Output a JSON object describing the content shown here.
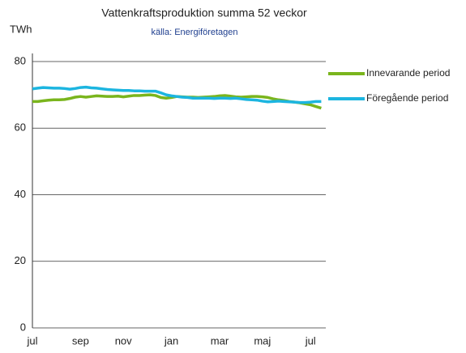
{
  "chart_data": {
    "type": "line",
    "title": "Vattenkraftsproduktion summa 52 veckor",
    "subtitle": "källa: Energiföretagen",
    "y_label": "TWh",
    "categories": [
      "jul",
      null,
      null,
      null,
      null,
      null,
      null,
      null,
      null,
      "sep",
      null,
      null,
      null,
      null,
      null,
      null,
      null,
      "nov",
      null,
      null,
      null,
      null,
      null,
      null,
      null,
      null,
      "jan",
      null,
      null,
      null,
      null,
      null,
      null,
      null,
      null,
      "mar",
      null,
      null,
      null,
      null,
      null,
      null,
      null,
      "maj",
      null,
      null,
      null,
      null,
      null,
      null,
      null,
      null,
      "jul",
      null,
      null
    ],
    "series": [
      {
        "name": "Innevarande period",
        "color": "#7ab51d",
        "values": [
          68,
          68,
          68.2,
          68.4,
          68.5,
          68.5,
          68.6,
          68.9,
          69.3,
          69.5,
          69.3,
          69.5,
          69.7,
          69.6,
          69.5,
          69.5,
          69.6,
          69.4,
          69.6,
          69.8,
          69.8,
          69.9,
          70,
          69.8,
          69.2,
          69,
          69.2,
          69.5,
          69.4,
          69.3,
          69.3,
          69.2,
          69.3,
          69.4,
          69.5,
          69.7,
          69.8,
          69.6,
          69.4,
          69.3,
          69.4,
          69.5,
          69.5,
          69.4,
          69.2,
          68.8,
          68.5,
          68.3,
          68,
          67.8,
          67.6,
          67.3,
          67,
          66.5,
          66
        ]
      },
      {
        "name": "Föregående period",
        "color": "#1cb5e0",
        "values": [
          71.8,
          72,
          72.2,
          72.1,
          72,
          72,
          71.9,
          71.7,
          71.9,
          72.2,
          72.3,
          72.1,
          72,
          71.8,
          71.6,
          71.5,
          71.4,
          71.3,
          71.3,
          71.2,
          71.2,
          71.1,
          71.1,
          71.1,
          70.6,
          70,
          69.7,
          69.5,
          69.3,
          69.2,
          69,
          69,
          69,
          69,
          68.9,
          69,
          69,
          68.9,
          69,
          68.8,
          68.6,
          68.5,
          68.4,
          68.1,
          67.9,
          68,
          68.1,
          68,
          67.9,
          67.8,
          67.7,
          67.7,
          67.8,
          68,
          68
        ]
      }
    ],
    "ylim": [
      0,
      80
    ],
    "yticks": [
      0,
      20,
      40,
      60,
      80
    ],
    "grid": true,
    "legend": "right"
  }
}
